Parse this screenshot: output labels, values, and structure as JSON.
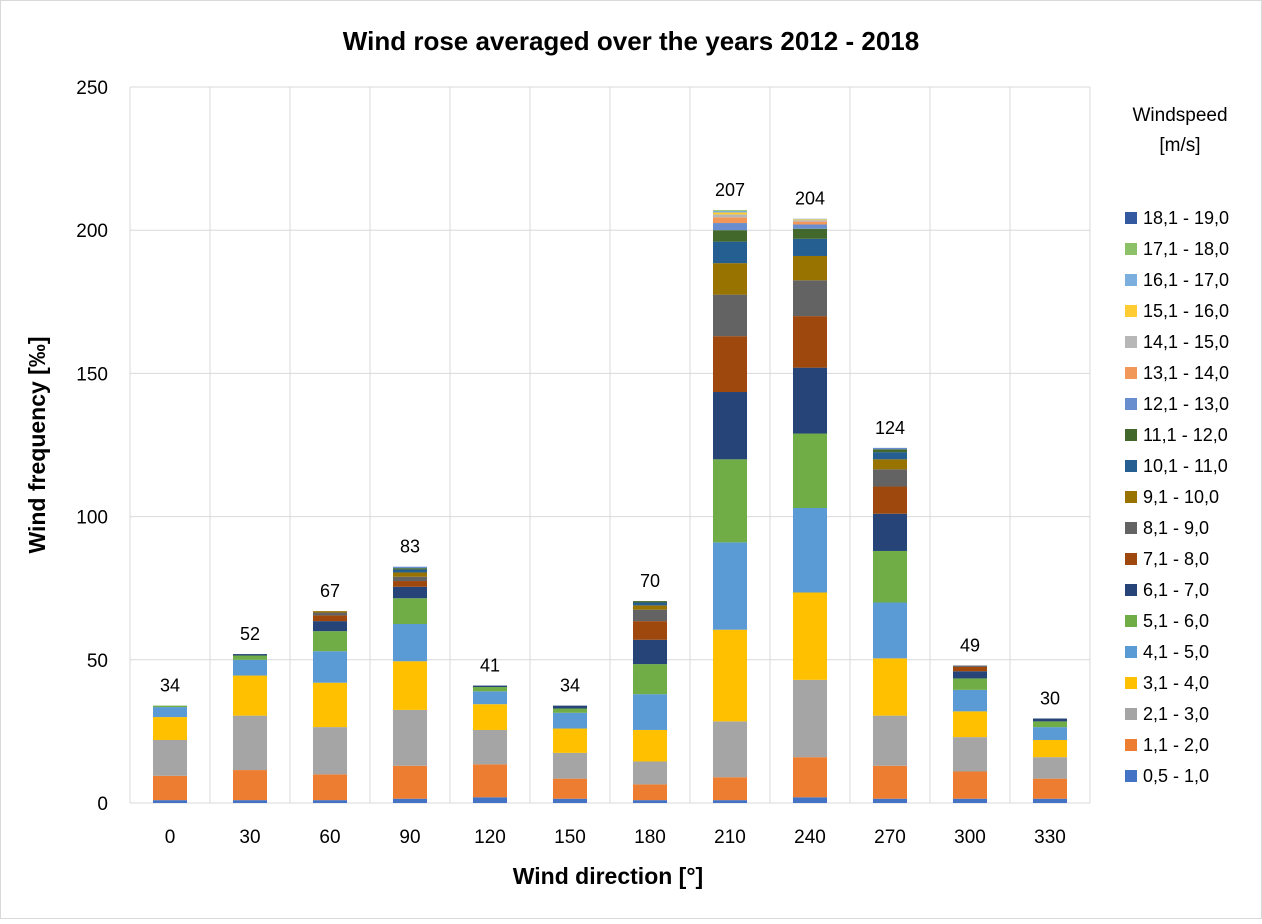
{
  "chart_data": {
    "type": "bar",
    "stacked": true,
    "title": "Wind rose averaged over the years 2012 - 2018",
    "xlabel": "Wind direction [°]",
    "ylabel": "Wind frequency [‰]",
    "ylim": [
      0,
      250
    ],
    "yticks": [
      "0",
      "50",
      "100",
      "150",
      "200",
      "250"
    ],
    "grid": true,
    "categories": [
      "0",
      "30",
      "60",
      "90",
      "120",
      "150",
      "180",
      "210",
      "240",
      "270",
      "300",
      "330"
    ],
    "totals": [
      "34",
      "52",
      "67",
      "83",
      "41",
      "34",
      "70",
      "207",
      "204",
      "124",
      "49",
      "30"
    ],
    "legend": {
      "title_line1": "Windspeed",
      "title_line2": "[m/s]",
      "placement": "right"
    },
    "series": [
      {
        "name": "0,5 - 1,0",
        "color": "#4472C4",
        "values": [
          1,
          1,
          1,
          1.5,
          2,
          1.5,
          1,
          1,
          2,
          1.5,
          1.5,
          1.5
        ]
      },
      {
        "name": "1,1 - 2,0",
        "color": "#ED7D31",
        "values": [
          8.5,
          10.5,
          9,
          11.5,
          11.5,
          7,
          5.5,
          8,
          14,
          11.5,
          9.5,
          7
        ]
      },
      {
        "name": "2,1 - 3,0",
        "color": "#A5A5A5",
        "values": [
          12.5,
          19,
          16.5,
          19.5,
          12,
          9,
          8,
          19.5,
          27,
          17.5,
          12,
          7.5
        ]
      },
      {
        "name": "3,1 - 4,0",
        "color": "#FFC000",
        "values": [
          8,
          14,
          15.5,
          17,
          9,
          8.5,
          11,
          32,
          30.5,
          20,
          9,
          6
        ]
      },
      {
        "name": "4,1 - 5,0",
        "color": "#5B9BD5",
        "values": [
          3.5,
          5.5,
          11,
          13,
          4.5,
          5.5,
          12.5,
          30.5,
          29.5,
          19.5,
          7.5,
          4.5
        ]
      },
      {
        "name": "5,1 - 6,0",
        "color": "#70AD47",
        "values": [
          0.5,
          1.5,
          7,
          9,
          1.5,
          1.5,
          10.5,
          29,
          26,
          18,
          4,
          2
        ]
      },
      {
        "name": "6,1 - 7,0",
        "color": "#264478",
        "values": [
          0,
          0.5,
          3.5,
          4,
          0.5,
          1,
          8.5,
          23.5,
          23,
          13,
          2.5,
          1
        ]
      },
      {
        "name": "7,1 - 8,0",
        "color": "#9E480E",
        "values": [
          0,
          0,
          2,
          2,
          0,
          0,
          6.5,
          19.5,
          18,
          9.5,
          1.5,
          0
        ]
      },
      {
        "name": "8,1 - 9,0",
        "color": "#636363",
        "values": [
          0,
          0,
          1,
          1.5,
          0,
          0,
          4,
          14.5,
          12.5,
          6,
          0.5,
          0
        ]
      },
      {
        "name": "9,1 - 10,0",
        "color": "#997300",
        "values": [
          0,
          0,
          0.5,
          1.5,
          0,
          0,
          1.5,
          11,
          8.5,
          3.5,
          0,
          0
        ]
      },
      {
        "name": "10,1 - 11,0",
        "color": "#255E91",
        "values": [
          0,
          0,
          0,
          1,
          0,
          0,
          1,
          7.5,
          6,
          2.5,
          0,
          0
        ]
      },
      {
        "name": "11,1 - 12,0",
        "color": "#43682B",
        "values": [
          0,
          0,
          0,
          0.5,
          0,
          0,
          0.5,
          4,
          3.5,
          1,
          0,
          0
        ]
      },
      {
        "name": "12,1 - 13,0",
        "color": "#698ED0",
        "values": [
          0,
          0,
          0,
          0.5,
          0,
          0,
          0,
          2.5,
          1.5,
          0.5,
          0,
          0
        ]
      },
      {
        "name": "13,1 - 14,0",
        "color": "#F1975A",
        "values": [
          0,
          0,
          0,
          0,
          0,
          0,
          0,
          2,
          1,
          0,
          0,
          0
        ]
      },
      {
        "name": "14,1 - 15,0",
        "color": "#B7B7B7",
        "values": [
          0,
          0,
          0,
          0,
          0,
          0,
          0,
          1,
          0.5,
          0,
          0,
          0
        ]
      },
      {
        "name": "15,1 - 16,0",
        "color": "#FFCD33",
        "values": [
          0,
          0,
          0,
          0,
          0,
          0,
          0,
          0.7,
          0.3,
          0,
          0,
          0
        ]
      },
      {
        "name": "16,1 - 17,0",
        "color": "#7CAFDD",
        "values": [
          0,
          0,
          0,
          0,
          0,
          0,
          0,
          0.5,
          0.2,
          0,
          0,
          0
        ]
      },
      {
        "name": "17,1 - 18,0",
        "color": "#8CC168",
        "values": [
          0,
          0,
          0,
          0,
          0,
          0,
          0,
          0.3,
          0,
          0,
          0,
          0
        ]
      },
      {
        "name": "18,1 - 19,0",
        "color": "#335AA1",
        "values": [
          0,
          0,
          0,
          0,
          0,
          0,
          0,
          0,
          0,
          0,
          0,
          0
        ]
      }
    ]
  }
}
